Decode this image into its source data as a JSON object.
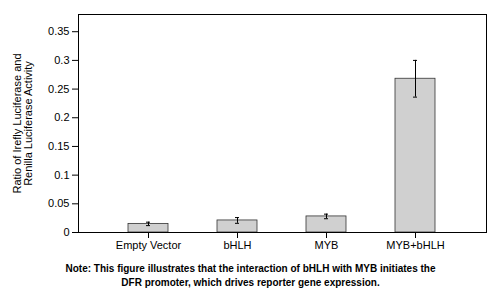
{
  "chart_data": {
    "type": "bar",
    "categories": [
      "Empty Vector",
      "bHLH",
      "MYB",
      "MYB+bHLH"
    ],
    "values": [
      0.015,
      0.021,
      0.028,
      0.268
    ],
    "errors": [
      0.003,
      0.005,
      0.004,
      0.032
    ],
    "color": "#d0d0d0",
    "ylabel": "Ratio of Irefly Luciferase and\nRenilla Luciferase Activity",
    "ylim": [
      0,
      0.38
    ],
    "yticks": [
      0,
      0.05,
      0.1,
      0.15,
      0.2,
      0.25,
      0.3,
      0.35
    ],
    "grid": false,
    "annotations": [
      "Note: This figure illustrates that the interaction of bHLH with MYB initiates the",
      "DFR promoter, which drives reporter gene expression."
    ]
  }
}
